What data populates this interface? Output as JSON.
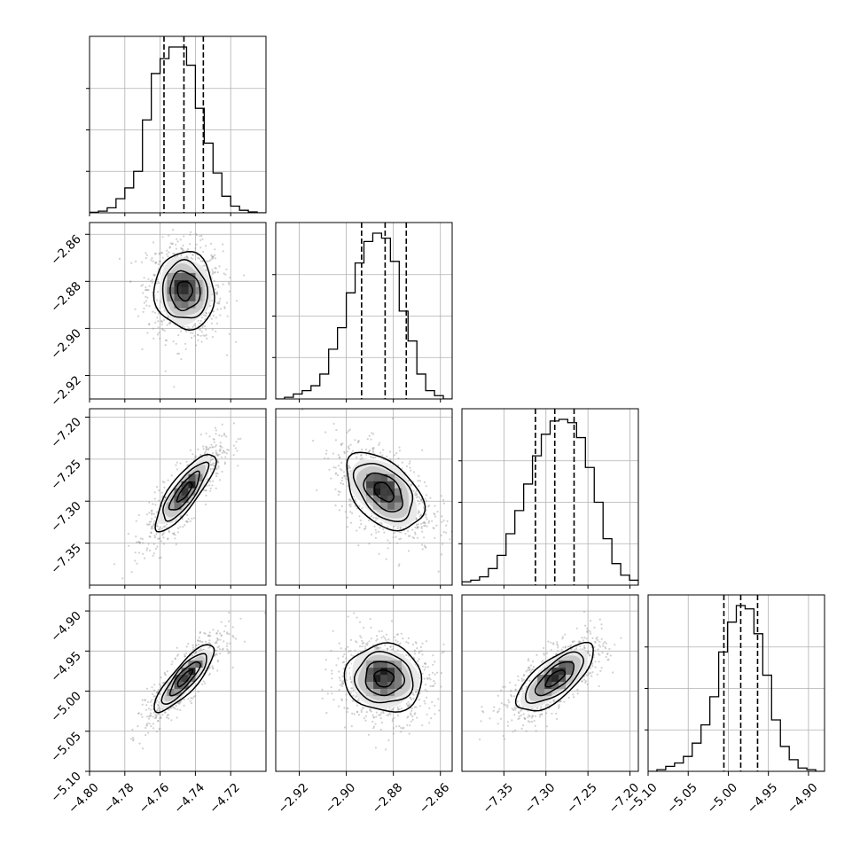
{
  "chart_data": {
    "type": "corner",
    "title": "",
    "grid": true,
    "colors": {
      "hist": "#000000",
      "contour": "#000000",
      "points": "#9a9a9a",
      "grid": "#b0b0b0",
      "density_dark": "#000000",
      "density_light": "#ffffff"
    },
    "parameters": [
      {
        "index": 0,
        "label": "",
        "range": [
          -4.8,
          -4.7
        ],
        "ticks": [
          "-4.80",
          "-4.78",
          "-4.76",
          "-4.74",
          "-4.72"
        ],
        "tick_values": [
          -4.8,
          -4.78,
          -4.76,
          -4.74,
          -4.72
        ],
        "quantiles": [
          -4.7578,
          -4.7465,
          -4.7355
        ],
        "mean": -4.746,
        "sigma": 0.0085
      },
      {
        "index": 1,
        "label": "",
        "range": [
          -2.93,
          -2.855
        ],
        "ticks": [
          "-2.92",
          "-2.90",
          "-2.88",
          "-2.86"
        ],
        "tick_values": [
          -2.92,
          -2.9,
          -2.88,
          -2.86
        ],
        "quantiles": [
          -2.8935,
          -2.8835,
          -2.8745
        ],
        "mean": -2.884,
        "sigma": 0.0082
      },
      {
        "index": 2,
        "label": "",
        "range": [
          -7.4,
          -7.19
        ],
        "ticks": [
          "-7.35",
          "-7.30",
          "-7.25",
          "-7.20"
        ],
        "tick_values": [
          -7.35,
          -7.3,
          -7.25,
          -7.2
        ],
        "quantiles": [
          -7.3125,
          -7.2895,
          -7.2665
        ],
        "mean": -7.289,
        "sigma": 0.023
      },
      {
        "index": 3,
        "label": "",
        "range": [
          -5.1,
          -4.88
        ],
        "ticks": [
          "-5.10",
          "-5.05",
          "-5.00",
          "-4.95",
          "-4.90"
        ],
        "tick_values": [
          -5.1,
          -5.05,
          -5.0,
          -4.95,
          -4.9
        ],
        "quantiles": [
          -5.0055,
          -4.9845,
          -4.9635
        ],
        "mean": -4.984,
        "sigma": 0.021
      }
    ],
    "correlations": [
      {
        "pair": [
          0,
          1
        ],
        "rho": -0.05
      },
      {
        "pair": [
          0,
          2
        ],
        "rho": 0.82
      },
      {
        "pair": [
          1,
          2
        ],
        "rho": -0.45
      },
      {
        "pair": [
          0,
          3
        ],
        "rho": 0.84
      },
      {
        "pair": [
          1,
          3
        ],
        "rho": -0.05
      },
      {
        "pair": [
          2,
          3
        ],
        "rho": 0.72
      }
    ],
    "histograms": [
      {
        "param": 0,
        "counts": [
          0.003,
          0.01,
          0.03,
          0.085,
          0.15,
          0.25,
          0.56,
          0.84,
          0.93,
          1.0,
          1.0,
          0.89,
          0.63,
          0.42,
          0.24,
          0.1,
          0.04,
          0.015,
          0.005,
          0.0
        ]
      },
      {
        "param": 1,
        "counts": [
          0.0,
          0.01,
          0.03,
          0.05,
          0.08,
          0.15,
          0.3,
          0.43,
          0.64,
          0.82,
          0.95,
          1.0,
          0.97,
          0.83,
          0.53,
          0.35,
          0.15,
          0.05,
          0.02,
          0.0
        ]
      },
      {
        "param": 2,
        "counts": [
          0.02,
          0.03,
          0.05,
          0.1,
          0.18,
          0.31,
          0.45,
          0.61,
          0.78,
          0.91,
          0.99,
          1.0,
          0.98,
          0.89,
          0.71,
          0.5,
          0.28,
          0.13,
          0.06,
          0.03
        ]
      },
      {
        "param": 3,
        "counts": [
          0.0,
          0.01,
          0.03,
          0.05,
          0.09,
          0.17,
          0.28,
          0.45,
          0.72,
          0.9,
          1.0,
          0.98,
          0.83,
          0.58,
          0.31,
          0.15,
          0.07,
          0.02,
          0.01,
          0.0
        ]
      }
    ]
  }
}
